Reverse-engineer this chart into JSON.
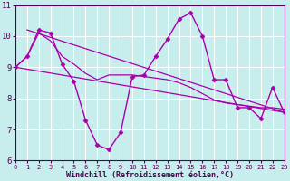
{
  "bg_color": "#c8eded",
  "line_color": "#aa00aa",
  "grid_color": "#b0d8d8",
  "xlim": [
    0,
    23
  ],
  "ylim": [
    6,
    11
  ],
  "yticks": [
    6,
    7,
    8,
    9,
    10,
    11
  ],
  "xticks": [
    0,
    1,
    2,
    3,
    4,
    5,
    6,
    7,
    8,
    9,
    10,
    11,
    12,
    13,
    14,
    15,
    16,
    17,
    18,
    19,
    20,
    21,
    22,
    23
  ],
  "xlabel": "Windchill (Refroidissement éolien,°C)",
  "hourly_x": [
    0,
    1,
    2,
    3,
    4,
    5,
    6,
    7,
    8,
    9,
    10,
    11,
    12,
    13,
    14,
    15,
    16,
    17,
    18,
    19,
    20,
    21,
    22,
    23
  ],
  "hourly_y": [
    9.0,
    9.35,
    10.2,
    10.1,
    9.1,
    8.55,
    7.3,
    6.5,
    6.35,
    6.9,
    8.7,
    8.75,
    9.35,
    9.9,
    10.55,
    10.75,
    10.0,
    8.6,
    8.6,
    7.7,
    7.7,
    7.35,
    8.35,
    7.55
  ],
  "trend1_x": [
    1,
    23
  ],
  "trend1_y": [
    10.2,
    7.55
  ],
  "trend2_x": [
    0,
    23
  ],
  "trend2_y": [
    9.0,
    7.55
  ],
  "smooth_x": [
    0,
    1,
    2,
    3,
    4,
    5,
    6,
    7,
    8,
    9,
    10,
    11,
    12,
    13,
    14,
    15,
    16,
    17,
    18,
    19,
    20,
    21,
    22,
    23
  ],
  "smooth_y": [
    9.0,
    9.35,
    10.1,
    9.85,
    9.35,
    9.1,
    8.8,
    8.6,
    8.75,
    8.75,
    8.75,
    8.7,
    8.65,
    8.6,
    8.5,
    8.35,
    8.15,
    7.95,
    7.85,
    7.8,
    7.75,
    7.7,
    7.7,
    7.65
  ]
}
